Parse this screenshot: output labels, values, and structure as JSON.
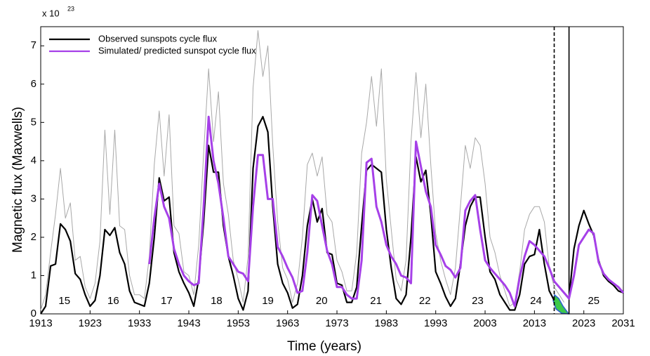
{
  "chart_data": {
    "type": "line",
    "multiplier": "x 10",
    "multiplier_exp": "23",
    "xlabel": "Time (years)",
    "ylabel": "Magnetic flux (Maxwells)",
    "x": [
      1913,
      1914,
      1915,
      1916,
      1917,
      1918,
      1919,
      1920,
      1921,
      1922,
      1923,
      1924,
      1925,
      1926,
      1927,
      1928,
      1929,
      1930,
      1931,
      1932,
      1933,
      1934,
      1935,
      1936,
      1937,
      1938,
      1939,
      1940,
      1941,
      1942,
      1943,
      1944,
      1945,
      1946,
      1947,
      1948,
      1949,
      1950,
      1951,
      1952,
      1953,
      1954,
      1955,
      1956,
      1957,
      1958,
      1959,
      1960,
      1961,
      1962,
      1963,
      1964,
      1965,
      1966,
      1967,
      1968,
      1969,
      1970,
      1971,
      1972,
      1973,
      1974,
      1975,
      1976,
      1977,
      1978,
      1979,
      1980,
      1981,
      1982,
      1983,
      1984,
      1985,
      1986,
      1987,
      1988,
      1989,
      1990,
      1991,
      1992,
      1993,
      1994,
      1995,
      1996,
      1997,
      1998,
      1999,
      2000,
      2001,
      2002,
      2003,
      2004,
      2005,
      2006,
      2007,
      2008,
      2009,
      2010,
      2011,
      2012,
      2013,
      2014,
      2015,
      2016,
      2017,
      2018,
      2019,
      2020,
      2021,
      2022,
      2023,
      2024,
      2025,
      2026,
      2027,
      2028,
      2029,
      2030,
      2031
    ],
    "series": [
      {
        "color": "#a8a8a8",
        "width": 1,
        "values": [
          0.1,
          0.5,
          1.6,
          2.6,
          3.8,
          2.5,
          2.9,
          1.4,
          1.5,
          0.7,
          0.4,
          0.8,
          1.9,
          4.8,
          2.6,
          4.8,
          2.3,
          2.2,
          1.0,
          0.5,
          0.5,
          0.4,
          1.5,
          3.9,
          5.3,
          3.6,
          5.2,
          2.3,
          2.1,
          1.1,
          1.0,
          0.5,
          1.8,
          4.2,
          6.4,
          4.5,
          5.8,
          3.4,
          2.6,
          1.4,
          0.9,
          0.3,
          1.5,
          5.9,
          7.4,
          6.2,
          7.0,
          4.4,
          2.4,
          1.2,
          0.9,
          0.3,
          0.8,
          2.0,
          3.9,
          4.2,
          3.6,
          4.1,
          2.6,
          2.4,
          1.4,
          1.1,
          0.6,
          0.6,
          1.6,
          4.2,
          5.0,
          6.2,
          4.9,
          6.4,
          3.5,
          2.2,
          0.9,
          0.6,
          1.4,
          4.5,
          6.3,
          4.6,
          6.0,
          3.9,
          2.1,
          1.4,
          0.9,
          0.5,
          1.2,
          2.8,
          4.4,
          3.8,
          4.6,
          4.4,
          3.4,
          2.0,
          1.6,
          1.0,
          0.6,
          0.2,
          0.3,
          1.1,
          2.2,
          2.6,
          2.8,
          2.8,
          2.4,
          1.2,
          0.7,
          0.5,
          0.3,
          null,
          null,
          null,
          null,
          null,
          null,
          null,
          null,
          null,
          null,
          null,
          null
        ]
      },
      {
        "name": "Observed sunspots cycle flux",
        "color": "#000000",
        "width": 2.2,
        "values": [
          0,
          0.2,
          1.25,
          1.3,
          2.35,
          2.2,
          1.9,
          1.05,
          0.9,
          0.5,
          0.2,
          0.35,
          1.0,
          2.2,
          2.05,
          2.25,
          1.6,
          1.3,
          0.6,
          0.3,
          0.25,
          0.2,
          0.8,
          2.0,
          3.55,
          2.95,
          3.05,
          1.6,
          1.1,
          0.8,
          0.55,
          0.2,
          0.9,
          2.4,
          4.4,
          3.7,
          3.7,
          2.3,
          1.5,
          1.0,
          0.4,
          0.1,
          0.6,
          3.8,
          4.9,
          5.15,
          4.75,
          2.8,
          1.3,
          0.8,
          0.55,
          0.15,
          0.25,
          1.0,
          2.3,
          3.0,
          2.4,
          2.75,
          1.6,
          1.55,
          0.8,
          0.75,
          0.3,
          0.3,
          0.7,
          2.3,
          3.75,
          3.9,
          3.8,
          3.7,
          2.2,
          1.2,
          0.4,
          0.25,
          0.5,
          2.0,
          4.1,
          3.45,
          3.75,
          2.6,
          1.1,
          0.8,
          0.45,
          0.2,
          0.4,
          1.3,
          2.3,
          2.8,
          3.05,
          3.05,
          2.0,
          1.1,
          0.9,
          0.5,
          0.3,
          0.1,
          0.1,
          0.5,
          1.3,
          1.5,
          1.55,
          2.2,
          1.3,
          0.6,
          0.35,
          null,
          null,
          0.4,
          1.7,
          2.3,
          2.7,
          2.35,
          2.05,
          1.4,
          1.0,
          0.85,
          0.75,
          0.6,
          0.55
        ]
      },
      {
        "name": "Simulated/ predicted sunspot cycle flux",
        "color": "#a640e8",
        "width": 3,
        "values": [
          null,
          null,
          null,
          null,
          null,
          null,
          null,
          null,
          null,
          null,
          null,
          null,
          null,
          null,
          null,
          null,
          null,
          null,
          null,
          null,
          null,
          null,
          1.3,
          2.5,
          3.4,
          2.8,
          2.5,
          1.7,
          1.3,
          1.0,
          0.85,
          0.75,
          0.8,
          2.8,
          5.15,
          4.0,
          3.4,
          2.5,
          1.5,
          1.3,
          1.1,
          1.05,
          0.85,
          2.8,
          4.15,
          4.15,
          3.0,
          3.0,
          1.75,
          1.5,
          1.2,
          0.95,
          0.55,
          0.6,
          1.6,
          3.1,
          2.95,
          2.3,
          1.65,
          1.3,
          0.7,
          0.7,
          0.5,
          0.4,
          0.4,
          1.4,
          3.95,
          4.05,
          2.8,
          2.4,
          1.8,
          1.5,
          1.3,
          1.0,
          0.95,
          0.8,
          4.5,
          3.85,
          3.2,
          2.8,
          1.8,
          1.55,
          1.25,
          1.15,
          0.95,
          1.2,
          2.7,
          2.95,
          3.1,
          2.2,
          1.4,
          1.2,
          1.05,
          0.9,
          0.75,
          0.55,
          0.2,
          0.95,
          1.5,
          1.9,
          1.8,
          1.65,
          1.5,
          1.2,
          0.85,
          0.7,
          0.55,
          0.4,
          1.0,
          1.8,
          2.0,
          2.2,
          2.1,
          1.35,
          1.05,
          0.9,
          0.8,
          0.7,
          0.55
        ]
      }
    ],
    "xlim": [
      1913,
      2031
    ],
    "xticks": [
      1913,
      1923,
      1933,
      1943,
      1953,
      1963,
      1973,
      1983,
      1993,
      2003,
      2013,
      2023,
      2031
    ],
    "ylim": [
      0,
      7.5
    ],
    "yticks": [
      0,
      1,
      2,
      3,
      4,
      5,
      6,
      7
    ],
    "cycle_labels": [
      "15",
      "16",
      "17",
      "18",
      "19",
      "20",
      "21",
      "22",
      "23",
      "24",
      "25"
    ],
    "cycle_label_x": [
      1917.8,
      1927.7,
      1938.5,
      1948.6,
      1959,
      1969.9,
      1980.9,
      1990.8,
      2001.5,
      2013.3,
      2025
    ],
    "cycle_label_y": 0.33,
    "vlines": [
      {
        "x": 2017,
        "style": "dashed"
      },
      {
        "x": 2020,
        "style": "solid"
      }
    ],
    "legend": "upper left"
  }
}
